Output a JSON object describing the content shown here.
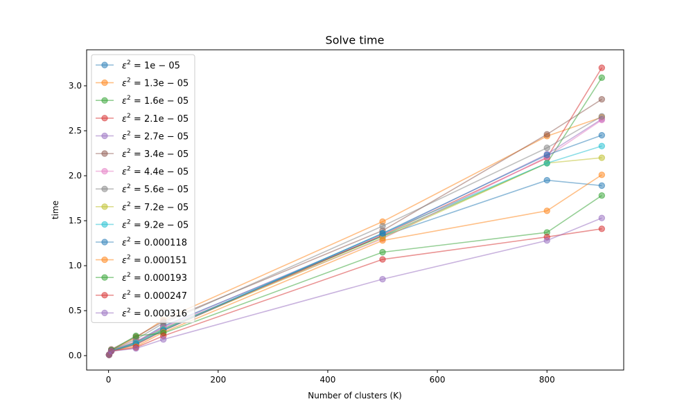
{
  "chart_data": {
    "type": "line",
    "title": "Solve time",
    "xlabel": "Number of clusters (K)",
    "ylabel": "time",
    "xlim": [
      -40,
      940
    ],
    "ylim": [
      -0.16,
      3.4
    ],
    "xticks": [
      0,
      200,
      400,
      600,
      800
    ],
    "yticks": [
      0.0,
      0.5,
      1.0,
      1.5,
      2.0,
      2.5,
      3.0
    ],
    "xtick_labels": [
      "0",
      "200",
      "400",
      "600",
      "800"
    ],
    "ytick_labels": [
      "0.0",
      "0.5",
      "1.0",
      "1.5",
      "2.0",
      "2.5",
      "3.0"
    ],
    "x": [
      1,
      5,
      50,
      100,
      500,
      800,
      900
    ],
    "legend_position": "upper-left",
    "grid": false,
    "marker": "circle",
    "series": [
      {
        "name": "ε² = 1e-05",
        "legend_math": "1e − 05",
        "color": "#1f77b4",
        "values": [
          0.01,
          0.05,
          0.15,
          0.33,
          1.33,
          1.95,
          1.89
        ]
      },
      {
        "name": "ε² = 1.3e-05",
        "legend_math": "1.3e − 05",
        "color": "#ff7f0e",
        "values": [
          0.01,
          0.06,
          0.2,
          0.4,
          1.49,
          2.44,
          2.65
        ]
      },
      {
        "name": "ε² = 1.6e-05",
        "legend_math": "1.6e − 05",
        "color": "#2ca02c",
        "values": [
          0.01,
          0.06,
          0.15,
          0.3,
          1.33,
          2.14,
          3.09
        ]
      },
      {
        "name": "ε² = 2.1e-05",
        "legend_math": "2.1e − 05",
        "color": "#d62728",
        "values": [
          0.01,
          0.05,
          0.12,
          0.28,
          1.34,
          2.2,
          3.2
        ]
      },
      {
        "name": "ε² = 2.7e-05",
        "legend_math": "2.7e − 05",
        "color": "#9467bd",
        "values": [
          0.01,
          0.05,
          0.14,
          0.32,
          1.35,
          2.24,
          2.63
        ]
      },
      {
        "name": "ε² = 3.4e-05",
        "legend_math": "3.4e − 05",
        "color": "#8c564b",
        "values": [
          0.01,
          0.07,
          0.21,
          0.38,
          1.39,
          2.46,
          2.85
        ]
      },
      {
        "name": "ε² = 4.4e-05",
        "legend_math": "4.4e − 05",
        "color": "#e377c2",
        "values": [
          0.01,
          0.06,
          0.16,
          0.31,
          1.3,
          2.21,
          2.62
        ]
      },
      {
        "name": "ε² = 5.6e-05",
        "legend_math": "5.6e − 05",
        "color": "#7f7f7f",
        "values": [
          0.01,
          0.06,
          0.18,
          0.36,
          1.44,
          2.31,
          2.66
        ]
      },
      {
        "name": "ε² = 7.2e-05",
        "legend_math": "7.2e − 05",
        "color": "#bcbd22",
        "values": [
          0.01,
          0.05,
          0.13,
          0.29,
          1.31,
          2.14,
          2.2
        ]
      },
      {
        "name": "ε² = 9.2e-05",
        "legend_math": "9.2e − 05",
        "color": "#17becf",
        "values": [
          0.01,
          0.05,
          0.14,
          0.29,
          1.36,
          2.14,
          2.33
        ]
      },
      {
        "name": "ε² = 0.000118",
        "legend_math": "0.000118",
        "color": "#1f77b4",
        "values": [
          0.01,
          0.05,
          0.13,
          0.28,
          1.36,
          2.23,
          2.45
        ]
      },
      {
        "name": "ε² = 0.000151",
        "legend_math": "0.000151",
        "color": "#ff7f0e",
        "values": [
          0.01,
          0.05,
          0.1,
          0.26,
          1.28,
          1.61,
          2.01
        ]
      },
      {
        "name": "ε² = 0.000193",
        "legend_math": "0.000193",
        "color": "#2ca02c",
        "values": [
          0.01,
          0.06,
          0.22,
          0.25,
          1.15,
          1.37,
          1.78
        ]
      },
      {
        "name": "ε² = 0.000247",
        "legend_math": "0.000247",
        "color": "#d62728",
        "values": [
          0.01,
          0.05,
          0.09,
          0.22,
          1.07,
          1.32,
          1.41
        ]
      },
      {
        "name": "ε² = 0.000316",
        "legend_math": "0.000316",
        "color": "#9467bd",
        "values": [
          0.01,
          0.05,
          0.08,
          0.18,
          0.85,
          1.28,
          1.53
        ]
      }
    ]
  }
}
